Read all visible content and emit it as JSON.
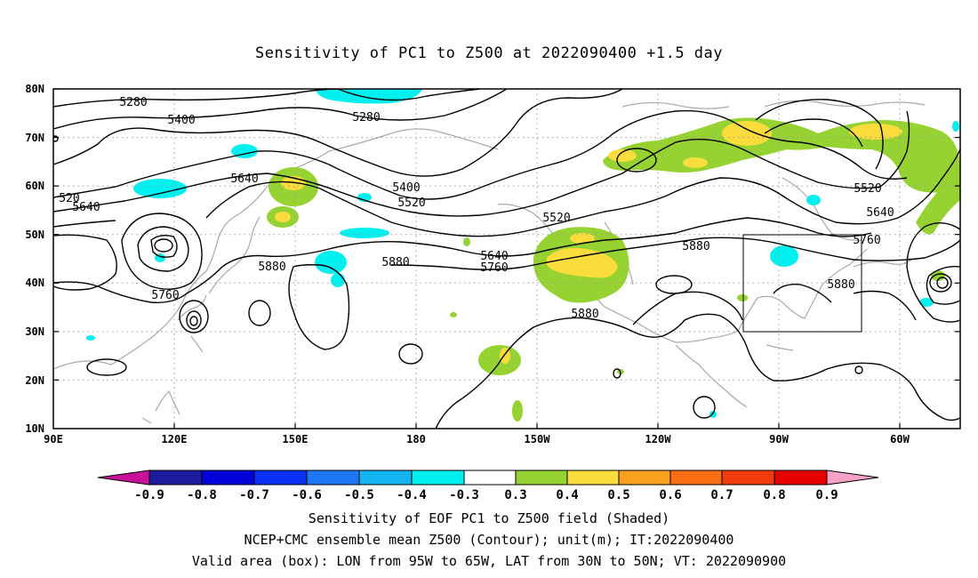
{
  "title": "Sensitivity of PC1 to Z500 at 2022090400 +1.5 day",
  "map": {
    "lat_labels": [
      "80N",
      "70N",
      "60N",
      "50N",
      "40N",
      "30N",
      "20N",
      "10N"
    ],
    "lon_labels": [
      "90E",
      "120E",
      "150E",
      "180",
      "150W",
      "120W",
      "90W",
      "60W"
    ],
    "contour_labels": [
      {
        "text": "5280"
      },
      {
        "text": "5280"
      },
      {
        "text": "5400"
      },
      {
        "text": "5400"
      },
      {
        "text": "5520"
      },
      {
        "text": "5520"
      },
      {
        "text": "5520"
      },
      {
        "text": "520"
      },
      {
        "text": "5640"
      },
      {
        "text": "5640"
      },
      {
        "text": "5640"
      },
      {
        "text": "5640"
      },
      {
        "text": "5760"
      },
      {
        "text": "5760"
      },
      {
        "text": "5760"
      },
      {
        "text": "5880"
      },
      {
        "text": "5880"
      },
      {
        "text": "5880"
      },
      {
        "text": "5880"
      },
      {
        "text": "5880"
      }
    ],
    "box": {
      "lon_from": "95W",
      "lon_to": "65W",
      "lat_from": "30N",
      "lat_to": "50N"
    }
  },
  "colorbar": {
    "levels": [
      "-0.9",
      "-0.8",
      "-0.7",
      "-0.6",
      "-0.5",
      "-0.4",
      "-0.3",
      "0.3",
      "0.4",
      "0.5",
      "0.6",
      "0.7",
      "0.8",
      "0.9"
    ],
    "colors": [
      "#1c1c9c",
      "#0000d8",
      "#0a32f5",
      "#1e78f5",
      "#14b4f0",
      "#00f0f0",
      "#ffffff",
      "#96d232",
      "#fadc3c",
      "#faa01e",
      "#fa6e14",
      "#f03c0a",
      "#e60000"
    ],
    "low_extend_color": "#c8109a",
    "high_extend_color": "#f7a0c8"
  },
  "captions": [
    "Sensitivity of EOF PC1 to Z500 field (Shaded)",
    "NCEP+CMC ensemble mean Z500 (Contour); unit(m); IT:2022090400",
    "Valid area (box): LON from 95W to 65W, LAT from 30N to 50N; VT: 2022090900"
  ]
}
